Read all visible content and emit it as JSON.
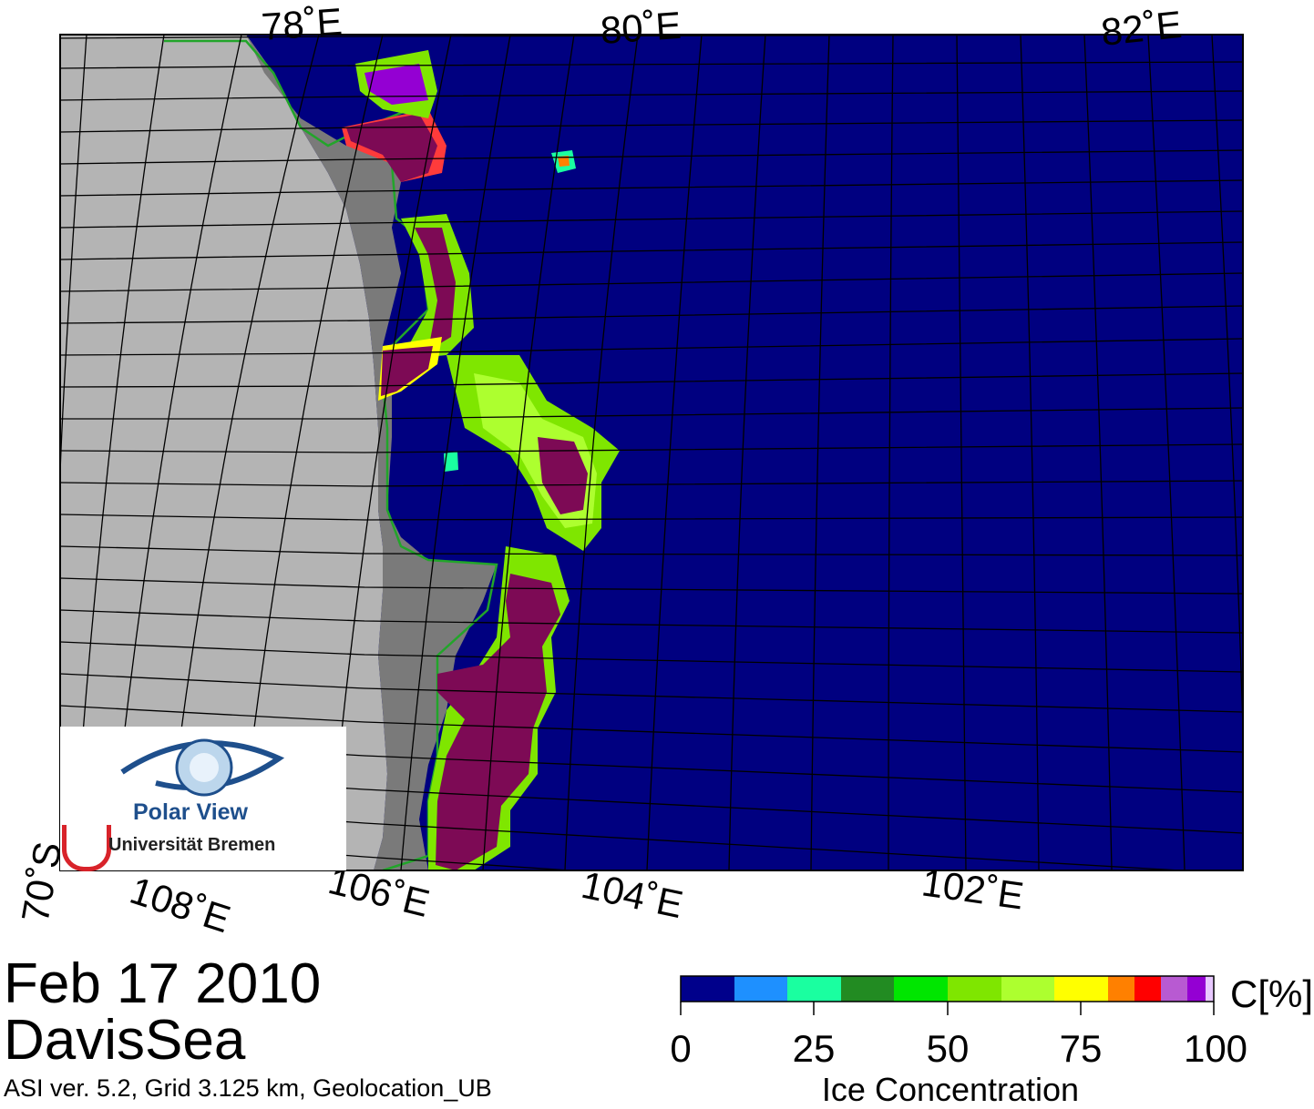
{
  "map": {
    "lon_labels_top": [
      "78˚E",
      "80˚E",
      "82˚E"
    ],
    "lon_labels_bottom": [
      "108˚E",
      "106˚E",
      "104˚E",
      "102˚E"
    ],
    "lat_label": "70˚S",
    "colors": {
      "open_water": "#000080",
      "land": "#b4b4b4",
      "ice_shelf": "#7a7a7a",
      "coastline": "#22a52a",
      "high_concentration": "#7d0a55"
    }
  },
  "logo": {
    "name": "Polar View",
    "institution": "Universität Bremen"
  },
  "title": {
    "date": "Feb 17 2010",
    "region": "DavisSea",
    "caption": "ASI ver. 5.2,  Grid 3.125 km, Geolocation_UB"
  },
  "colorbar": {
    "unit": "C[%]",
    "title": "Ice Concentration",
    "ticks": [
      "0",
      "25",
      "50",
      "75",
      "100"
    ],
    "colors": [
      "#00008b",
      "#1e90ff",
      "#1affa0",
      "#228b22",
      "#00e600",
      "#7fe600",
      "#adff2f",
      "#ffff00",
      "#ff8000",
      "#ff0000",
      "#b85ad2",
      "#9400d3",
      "#e8c8ff"
    ]
  }
}
